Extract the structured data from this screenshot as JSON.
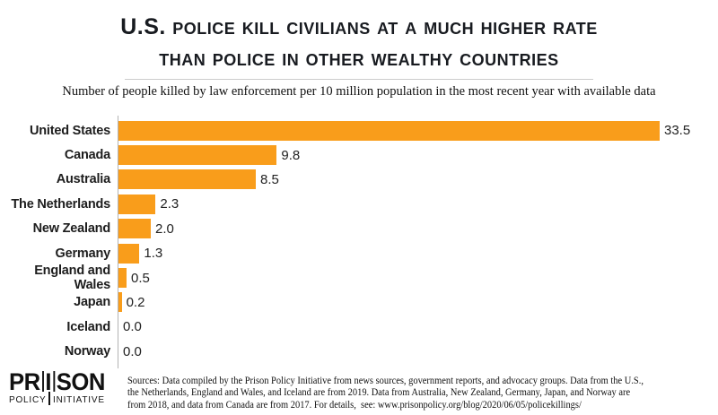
{
  "header": {
    "title_line1": "U.S. police kill civilians at a much higher rate",
    "title_line2": "than police in other wealthy countries",
    "subtitle": "Number of people killed by law enforcement per 10 million population in the most recent year with available data"
  },
  "chart_data": {
    "type": "bar",
    "orientation": "horizontal",
    "title": "U.S. police kill civilians at a much higher rate than police in other wealthy countries",
    "subtitle": "Number of people killed by law enforcement per 10 million population in the most recent year with available data",
    "categories": [
      "United States",
      "Canada",
      "Australia",
      "The Netherlands",
      "New Zealand",
      "Germany",
      "England and Wales",
      "Japan",
      "Iceland",
      "Norway"
    ],
    "values": [
      33.5,
      9.8,
      8.5,
      2.3,
      2.0,
      1.3,
      0.5,
      0.2,
      0.0,
      0.0
    ],
    "xlabel": "",
    "ylabel": "",
    "xlim": [
      0,
      35
    ],
    "grid": false,
    "legend": false,
    "bar_color": "#F99D1B",
    "value_label_decimals": 1
  },
  "footer": {
    "logo": {
      "top_parts": [
        "PR",
        "I",
        "SON"
      ],
      "bottom_parts": [
        "POLICY",
        "INITIATIVE"
      ]
    },
    "source_lines": [
      "Sources: Data compiled by the Prison Policy Initiative from news sources, government reports, and advocacy groups. Data from the U.S.,",
      "the Netherlands, England and Wales, and Iceland are from 2019. Data from Australia, New Zealand, Germany, Japan, and Norway are",
      "from 2018, and data from Canada are from 2017. For details,  see: www.prisonpolicy.org/blog/2020/06/05/policekillings/"
    ]
  },
  "colors": {
    "bar_orange": "#F99D1B",
    "title_text": "#181b20",
    "axis_gray": "#b3b3b3",
    "divider_gray": "#cccccc"
  }
}
